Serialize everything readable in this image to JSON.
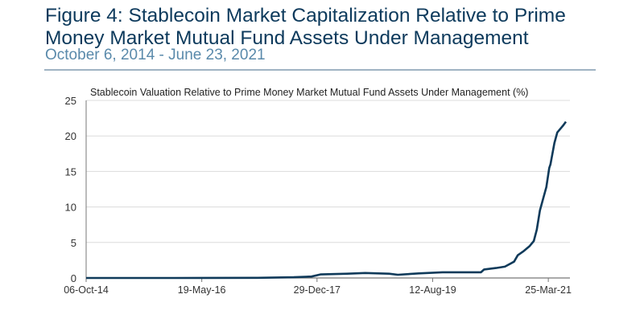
{
  "header": {
    "title": "Figure 4:  Stablecoin Market Capitalization Relative to Prime Money Market Mutual Fund Assets Under Management",
    "subtitle": "October 6, 2014 - June 23, 2021"
  },
  "chart_data": {
    "type": "line",
    "title": "Stablecoin Valuation Relative to Prime Money Market Mutual Fund Assets Under Management (%)",
    "xlabel": "",
    "ylabel": "",
    "ylim": [
      0,
      25
    ],
    "yticks": [
      0,
      5,
      10,
      15,
      20,
      25
    ],
    "xlim": [
      "2014-10-06",
      "2021-06-23"
    ],
    "xticks": [
      {
        "date": "2014-10-06",
        "label": "06-Oct-14"
      },
      {
        "date": "2016-05-19",
        "label": "19-May-16"
      },
      {
        "date": "2017-12-29",
        "label": "29-Dec-17"
      },
      {
        "date": "2019-08-12",
        "label": "12-Aug-19"
      },
      {
        "date": "2021-03-25",
        "label": "25-Mar-21"
      }
    ],
    "grid": true,
    "line_color": "#0f3a5a",
    "series": [
      {
        "x": [
          "2014-10-06",
          "2016-01-01",
          "2017-03-01",
          "2017-09-01",
          "2017-12-01",
          "2018-01-15",
          "2018-06-01",
          "2018-09-01",
          "2019-01-01",
          "2019-02-15",
          "2019-06-01",
          "2019-10-01",
          "2020-01-01",
          "2020-04-15",
          "2020-05-01",
          "2020-07-01",
          "2020-08-15",
          "2020-10-01",
          "2020-10-20",
          "2020-11-20",
          "2020-12-20",
          "2021-01-10",
          "2021-01-25",
          "2021-02-10",
          "2021-02-25",
          "2021-03-15",
          "2021-03-30",
          "2021-04-05",
          "2021-04-25",
          "2021-05-10",
          "2021-05-25",
          "2021-06-10",
          "2021-06-23"
        ],
        "y": [
          0,
          0,
          0.02,
          0.1,
          0.2,
          0.5,
          0.6,
          0.7,
          0.6,
          0.45,
          0.65,
          0.8,
          0.8,
          0.8,
          1.2,
          1.4,
          1.6,
          2.3,
          3.2,
          3.8,
          4.5,
          5.2,
          6.8,
          9.5,
          11,
          12.8,
          15.5,
          16,
          19,
          20.5,
          21,
          21.5,
          22
        ]
      }
    ]
  }
}
